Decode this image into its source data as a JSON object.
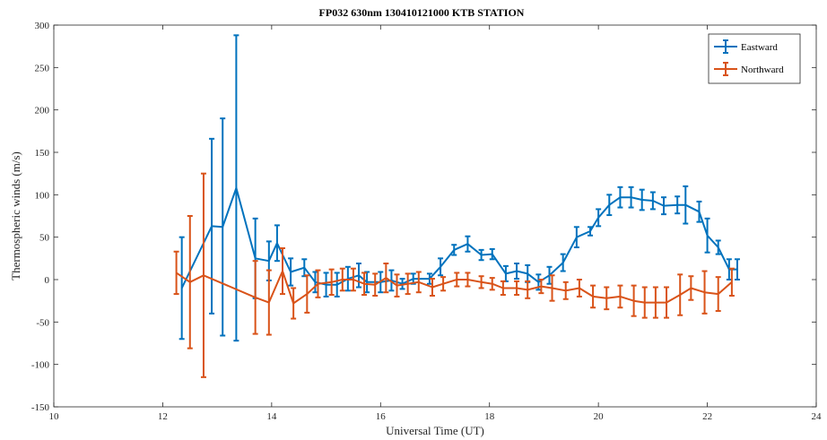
{
  "chart_data": {
    "type": "line",
    "title": "FP032 630nm 130410121000 KTB STATION",
    "xlabel": "Universal Time (UT)",
    "ylabel": "Thermospheric winds (m/s)",
    "xlim": [
      10,
      24
    ],
    "ylim": [
      -150,
      300
    ],
    "xticks": [
      10,
      12,
      14,
      16,
      18,
      20,
      22,
      24
    ],
    "yticks": [
      -150,
      -100,
      -50,
      0,
      50,
      100,
      150,
      200,
      250,
      300
    ],
    "legend_position": "top-right",
    "error_bars": true,
    "series": [
      {
        "name": "Eastward",
        "color": "#0072BD",
        "x": [
          12.35,
          12.9,
          13.1,
          13.35,
          13.7,
          13.95,
          14.1,
          14.35,
          14.6,
          14.8,
          15.0,
          15.2,
          15.4,
          15.6,
          15.75,
          16.0,
          16.2,
          16.4,
          16.6,
          16.9,
          17.1,
          17.35,
          17.6,
          17.85,
          18.05,
          18.3,
          18.5,
          18.7,
          18.9,
          19.1,
          19.35,
          19.6,
          19.85,
          20.0,
          20.2,
          20.4,
          20.6,
          20.8,
          21.0,
          21.2,
          21.45,
          21.6,
          21.85,
          22.0,
          22.2,
          22.4,
          22.55
        ],
        "y": [
          -10,
          63,
          62,
          108,
          25,
          22,
          43,
          9,
          14,
          -3,
          -6,
          -6,
          1,
          5,
          -3,
          -3,
          -1,
          -5,
          1,
          1,
          15,
          35,
          42,
          29,
          30,
          7,
          10,
          7,
          -3,
          5,
          20,
          50,
          57,
          73,
          88,
          97,
          97,
          94,
          93,
          87,
          88,
          88,
          80,
          52,
          38,
          12,
          12
        ],
        "err": [
          60,
          103,
          128,
          180,
          47,
          23,
          21,
          16,
          10,
          12,
          14,
          14,
          14,
          14,
          12,
          12,
          12,
          6,
          6,
          6,
          10,
          6,
          9,
          6,
          6,
          9,
          9,
          10,
          9,
          10,
          10,
          12,
          5,
          10,
          12,
          12,
          12,
          12,
          10,
          10,
          10,
          22,
          12,
          20,
          8,
          12,
          12
        ]
      },
      {
        "name": "Northward",
        "color": "#D95319",
        "x": [
          12.25,
          12.5,
          12.75,
          13.7,
          13.95,
          14.2,
          14.4,
          14.65,
          14.85,
          15.1,
          15.3,
          15.5,
          15.7,
          15.9,
          16.1,
          16.3,
          16.5,
          16.7,
          16.95,
          17.15,
          17.4,
          17.6,
          17.85,
          18.05,
          18.25,
          18.5,
          18.7,
          18.95,
          19.15,
          19.4,
          19.65,
          19.9,
          20.15,
          20.4,
          20.65,
          20.85,
          21.05,
          21.25,
          21.5,
          21.7,
          21.95,
          22.2,
          22.45
        ],
        "y": [
          8,
          -3,
          5,
          -21,
          -27,
          10,
          -28,
          -17,
          -5,
          -3,
          0,
          0,
          -5,
          -6,
          2,
          -7,
          -5,
          -3,
          -9,
          -5,
          0,
          0,
          -3,
          -5,
          -10,
          -10,
          -12,
          -8,
          -10,
          -13,
          -10,
          -20,
          -22,
          -20,
          -25,
          -27,
          -27,
          -27,
          -18,
          -10,
          -15,
          -17,
          -3
        ],
        "err": [
          25,
          78,
          120,
          43,
          38,
          27,
          18,
          22,
          16,
          15,
          13,
          13,
          13,
          13,
          17,
          13,
          12,
          12,
          10,
          8,
          8,
          8,
          7,
          7,
          8,
          8,
          10,
          8,
          15,
          10,
          10,
          13,
          13,
          13,
          18,
          18,
          18,
          18,
          24,
          14,
          25,
          20,
          16
        ]
      }
    ]
  }
}
